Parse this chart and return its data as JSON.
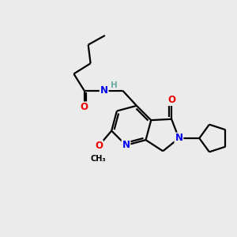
{
  "bg_color": "#ebebeb",
  "bond_color": "#000000",
  "bond_width": 1.6,
  "atom_colors": {
    "C": "#000000",
    "N": "#0000ee",
    "O": "#ee0000",
    "H": "#6aacac"
  },
  "font_size": 8.5,
  "fig_size": [
    3.0,
    3.0
  ],
  "dpi": 100
}
